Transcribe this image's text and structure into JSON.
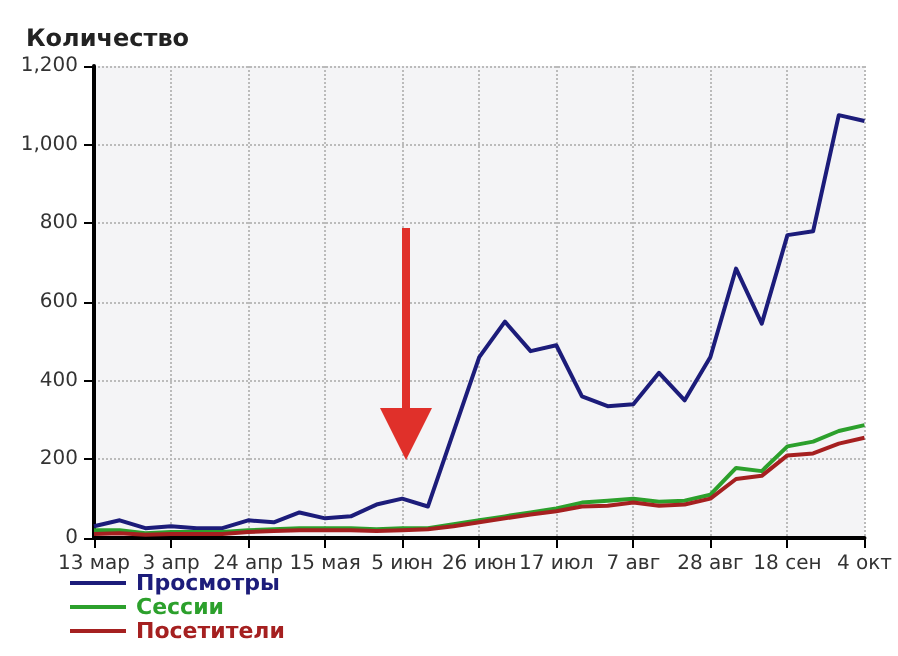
{
  "chart_data": {
    "type": "line",
    "ylabel": "Количество",
    "categories": [
      "13 мар",
      null,
      null,
      "3 апр",
      null,
      null,
      "24 апр",
      null,
      null,
      "15 мая",
      null,
      null,
      "5 июн",
      null,
      null,
      "26 июн",
      null,
      null,
      "17 июл",
      null,
      null,
      "7 авг",
      null,
      null,
      "28 авг",
      null,
      null,
      "18 сен",
      null,
      null,
      "4 окт"
    ],
    "series": [
      {
        "name": "Просмотры",
        "color": "#1c1c7a",
        "values": [
          30,
          45,
          25,
          30,
          25,
          25,
          45,
          40,
          65,
          50,
          55,
          85,
          100,
          80,
          270,
          460,
          550,
          475,
          490,
          360,
          335,
          340,
          420,
          350,
          460,
          685,
          545,
          770,
          780,
          1075,
          1060
        ]
      },
      {
        "name": "Сессии",
        "color": "#2ca02c",
        "values": [
          20,
          20,
          12,
          15,
          15,
          15,
          20,
          22,
          25,
          25,
          25,
          22,
          25,
          25,
          35,
          45,
          55,
          65,
          75,
          90,
          95,
          100,
          92,
          95,
          110,
          178,
          170,
          233,
          245,
          272,
          287
        ]
      },
      {
        "name": "Посетители",
        "color": "#a52020",
        "values": [
          10,
          12,
          8,
          10,
          10,
          10,
          15,
          18,
          20,
          20,
          20,
          18,
          20,
          22,
          30,
          40,
          50,
          60,
          68,
          80,
          82,
          90,
          82,
          85,
          100,
          150,
          158,
          210,
          215,
          240,
          255
        ]
      }
    ],
    "ylim": [
      0,
      1200
    ],
    "yticks": [
      0,
      200,
      400,
      600,
      800,
      {
        "value": 1000,
        "label": "1,000"
      },
      {
        "value": 1200,
        "label": "1,200"
      }
    ],
    "grid": true,
    "legend": "bottom left",
    "marker": "none",
    "line_style": "solid"
  }
}
